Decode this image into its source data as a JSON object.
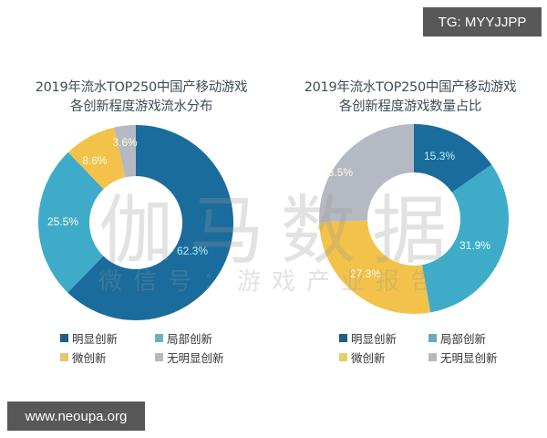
{
  "badges": {
    "top_right": "TG: MYYJJPP",
    "bottom_left": "www.neoupa.org"
  },
  "watermark": {
    "main": "伽马数据",
    "sub": "微信号：游戏产业报告"
  },
  "colors": {
    "明显创新": "#1a6c9c",
    "局部创新": "#3eacc8",
    "微创新": "#f3c24a",
    "无明显创新": "#b4b9c3"
  },
  "chart_data": [
    {
      "type": "pie",
      "variant": "donut",
      "title": "2019年流水TOP250中国产移动游戏各创新程度游戏流水分布",
      "title_lines": [
        "2019年流水TOP250中国产移动游戏",
        "各创新程度游戏流水分布"
      ],
      "categories": [
        "明显创新",
        "局部创新",
        "微创新",
        "无明显创新"
      ],
      "values": [
        62.3,
        25.5,
        8.6,
        3.6
      ],
      "labels": [
        "62.3%",
        "25.5%",
        "8.6%",
        "3.6%"
      ],
      "unit": "%",
      "legend_position": "bottom",
      "legend": [
        "明显创新",
        "局部创新",
        "微创新",
        "无明显创新"
      ]
    },
    {
      "type": "pie",
      "variant": "donut",
      "title": "2019年流水TOP250中国产移动游戏各创新程度游戏数量占比",
      "title_lines": [
        "2019年流水TOP250中国产移动游戏",
        "各创新程度游戏数量占比"
      ],
      "categories": [
        "明显创新",
        "局部创新",
        "微创新",
        "无明显创新"
      ],
      "values": [
        15.3,
        31.9,
        27.3,
        25.5
      ],
      "labels": [
        "15.3%",
        "31.9%",
        "27.3%",
        "25.5%"
      ],
      "unit": "%",
      "legend_position": "bottom",
      "legend": [
        "明显创新",
        "局部创新",
        "微创新",
        "无明显创新"
      ]
    }
  ]
}
